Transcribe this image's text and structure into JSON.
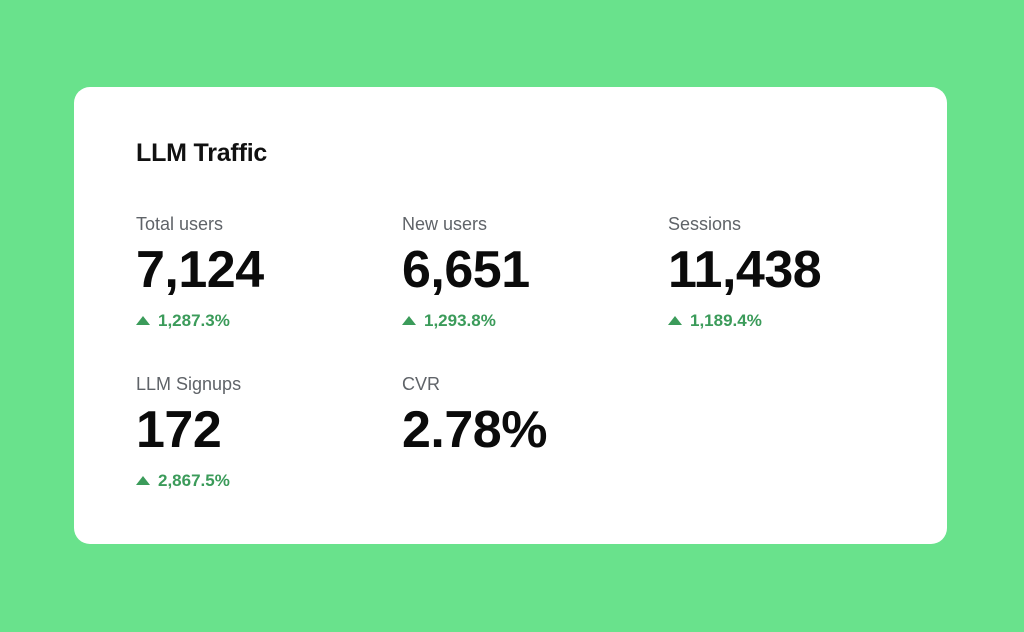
{
  "card": {
    "title": "LLM Traffic"
  },
  "metrics": [
    {
      "label": "Total users",
      "value": "7,124",
      "delta": "1,287.3%",
      "trend_icon": "triangle-up-icon"
    },
    {
      "label": "New users",
      "value": "6,651",
      "delta": "1,293.8%",
      "trend_icon": "triangle-up-icon"
    },
    {
      "label": "Sessions",
      "value": "11,438",
      "delta": "1,189.4%",
      "trend_icon": "triangle-up-icon"
    },
    {
      "label": "LLM Signups",
      "value": "172",
      "delta": "2,867.5%",
      "trend_icon": "triangle-up-icon"
    },
    {
      "label": "CVR",
      "value": "2.78%"
    }
  ],
  "colors": {
    "background": "#69e28c",
    "card": "#ffffff",
    "positive_delta": "#3b9b5a",
    "label": "#5f6368",
    "value": "#0b0b0b"
  }
}
